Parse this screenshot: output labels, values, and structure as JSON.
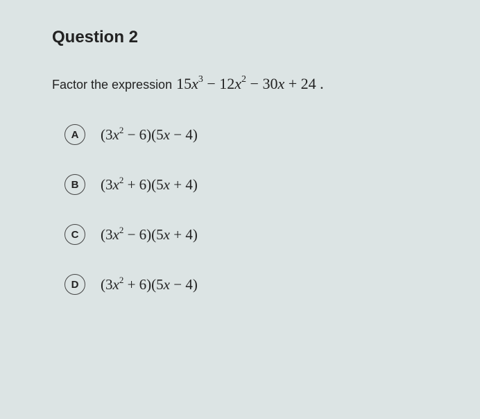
{
  "question": {
    "title": "Question 2",
    "prompt_text": "Factor the expression",
    "expression_html": "15<span class='var'>x</span><sup>3</sup> &minus; 12<span class='var'>x</span><sup>2</sup> &minus; 30<span class='var'>x</span> + 24 ."
  },
  "options": [
    {
      "letter": "A",
      "answer_html": "(3<span class='var'>x</span><sup>2</sup> &minus; 6)(5<span class='var'>x</span> &minus; 4)"
    },
    {
      "letter": "B",
      "answer_html": "(3<span class='var'>x</span><sup>2</sup> + 6)(5<span class='var'>x</span> + 4)"
    },
    {
      "letter": "C",
      "answer_html": "(3<span class='var'>x</span><sup>2</sup> &minus; 6)(5<span class='var'>x</span> + 4)"
    },
    {
      "letter": "D",
      "answer_html": "(3<span class='var'>x</span><sup>2</sup> + 6)(5<span class='var'>x</span> &minus; 4)"
    }
  ],
  "styles": {
    "background_color": "#dce4e4",
    "text_color": "#222",
    "circle_border_color": "#444",
    "title_fontsize": 24,
    "prompt_fontsize": 18,
    "math_fontsize": 22,
    "option_fontsize": 21,
    "circle_size": 30
  }
}
